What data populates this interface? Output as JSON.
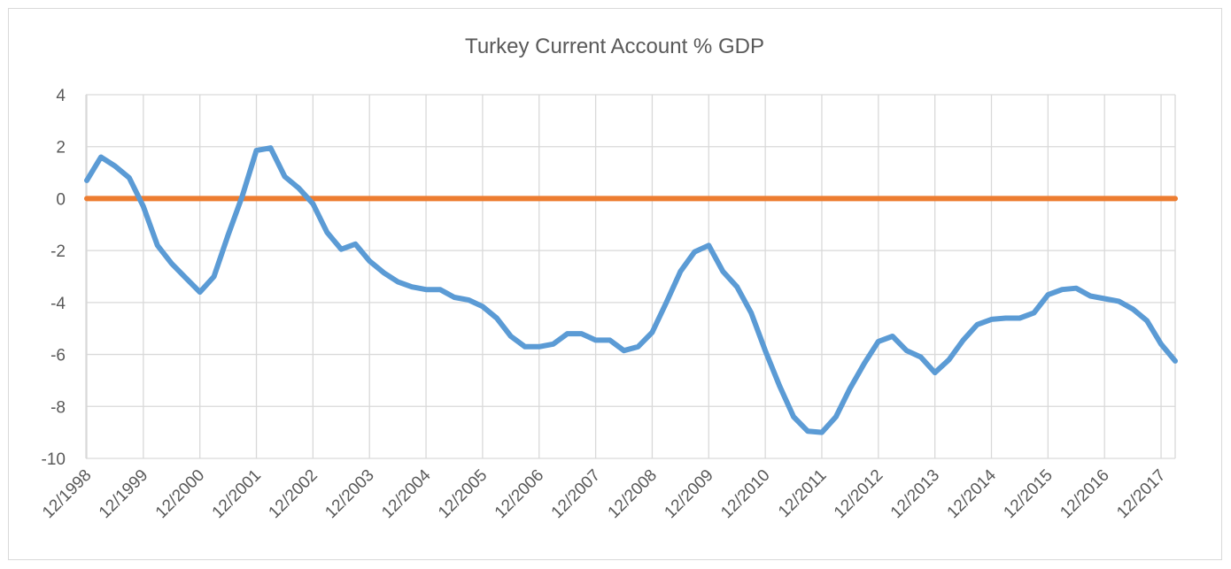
{
  "chart_data": {
    "type": "line",
    "title": "Turkey Current Account % GDP",
    "xlabel": "",
    "ylabel": "",
    "ylim": [
      -10,
      4
    ],
    "y_ticks": [
      4,
      2,
      0,
      -2,
      -4,
      -6,
      -8,
      -10
    ],
    "x_tick_labels": [
      "12/1998",
      "12/1999",
      "12/2000",
      "12/2001",
      "12/2002",
      "12/2003",
      "12/2004",
      "12/2005",
      "12/2006",
      "12/2007",
      "12/2008",
      "12/2009",
      "12/2010",
      "12/2011",
      "12/2012",
      "12/2013",
      "12/2014",
      "12/2015",
      "12/2016",
      "12/2017"
    ],
    "grid": true,
    "legend": "none",
    "series": [
      {
        "color": "#5b9bd5",
        "x": [
          "12/1998",
          "3/1999",
          "6/1999",
          "9/1999",
          "12/1999",
          "3/2000",
          "6/2000",
          "9/2000",
          "12/2000",
          "3/2001",
          "6/2001",
          "9/2001",
          "12/2001",
          "3/2002",
          "6/2002",
          "9/2002",
          "12/2002",
          "3/2003",
          "6/2003",
          "9/2003",
          "12/2003",
          "3/2004",
          "6/2004",
          "9/2004",
          "12/2004",
          "3/2005",
          "6/2005",
          "9/2005",
          "12/2005",
          "3/2006",
          "6/2006",
          "9/2006",
          "12/2006",
          "3/2007",
          "6/2007",
          "9/2007",
          "12/2007",
          "3/2008",
          "6/2008",
          "9/2008",
          "12/2008",
          "3/2009",
          "6/2009",
          "9/2009",
          "12/2009",
          "3/2010",
          "6/2010",
          "9/2010",
          "12/2010",
          "3/2011",
          "6/2011",
          "9/2011",
          "12/2011",
          "3/2012",
          "6/2012",
          "9/2012",
          "12/2012",
          "3/2013",
          "6/2013",
          "9/2013",
          "12/2013",
          "3/2014",
          "6/2014",
          "9/2014",
          "12/2014",
          "3/2015",
          "6/2015",
          "9/2015",
          "12/2015",
          "3/2016",
          "6/2016",
          "9/2016",
          "12/2016",
          "3/2017",
          "6/2017",
          "9/2017",
          "12/2017",
          "3/2018"
        ],
        "values": [
          0.7,
          1.6,
          1.25,
          0.8,
          -0.3,
          -1.8,
          -2.5,
          -3.05,
          -3.6,
          -3.0,
          -1.4,
          0.1,
          1.85,
          1.95,
          0.85,
          0.4,
          -0.2,
          -1.3,
          -1.95,
          -1.75,
          -2.4,
          -2.85,
          -3.2,
          -3.4,
          -3.5,
          -3.5,
          -3.8,
          -3.9,
          -4.15,
          -4.6,
          -5.3,
          -5.7,
          -5.7,
          -5.6,
          -5.2,
          -5.2,
          -5.45,
          -5.45,
          -5.85,
          -5.7,
          -5.15,
          -4.0,
          -2.8,
          -2.05,
          -1.8,
          -2.8,
          -3.4,
          -4.4,
          -5.85,
          -7.2,
          -8.4,
          -8.95,
          -9.0,
          -8.4,
          -7.3,
          -6.35,
          -5.5,
          -5.3,
          -5.85,
          -6.1,
          -6.7,
          -6.2,
          -5.45,
          -4.85,
          -4.65,
          -4.6,
          -4.6,
          -4.4,
          -3.7,
          -3.5,
          -3.45,
          -3.75,
          -3.85,
          -3.95,
          -4.25,
          -4.7,
          -5.6,
          -6.25
        ]
      },
      {
        "color": "#ed7d31",
        "x": [
          "12/1998",
          "3/2018"
        ],
        "values": [
          0,
          0
        ]
      }
    ]
  }
}
